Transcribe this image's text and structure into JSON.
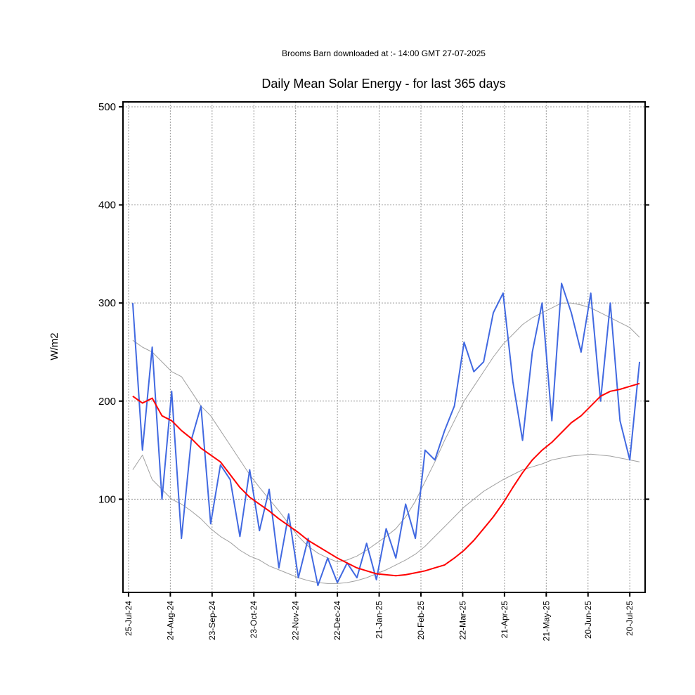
{
  "chart_data": {
    "type": "line",
    "subtitle": "Brooms Barn downloaded at :- 14:00 GMT 27-07-2025",
    "title": "Daily Mean Solar Energy - for last 365 days",
    "xlabel": "",
    "ylabel": "W/m2",
    "ylim": [
      5,
      505
    ],
    "yticks": [
      100,
      200,
      300,
      400,
      500
    ],
    "xlim": [
      "2024-07-21",
      "2025-07-31"
    ],
    "xticks": [
      "25-Jul-24",
      "24-Aug-24",
      "23-Sep-24",
      "23-Oct-24",
      "22-Nov-24",
      "22-Dec-24",
      "21-Jan-25",
      "20-Feb-25",
      "22-Mar-25",
      "21-Apr-25",
      "21-May-25",
      "20-Jun-25",
      "20-Jul-25"
    ],
    "grid": true,
    "series": [
      {
        "color": "#ff0000",
        "x": [
          "2024-07-28",
          "2024-08-04",
          "2024-08-11",
          "2024-08-18",
          "2024-08-25",
          "2024-09-01",
          "2024-09-08",
          "2024-09-15",
          "2024-09-22",
          "2024-09-29",
          "2024-10-06",
          "2024-10-13",
          "2024-10-20",
          "2024-10-27",
          "2024-11-03",
          "2024-11-10",
          "2024-11-17",
          "2024-11-24",
          "2024-12-01",
          "2024-12-08",
          "2024-12-15",
          "2024-12-22",
          "2024-12-29",
          "2025-01-05",
          "2025-01-12",
          "2025-01-19",
          "2025-01-26",
          "2025-02-02",
          "2025-02-09",
          "2025-02-16",
          "2025-02-23",
          "2025-03-02",
          "2025-03-09",
          "2025-03-16",
          "2025-03-23",
          "2025-03-30",
          "2025-04-06",
          "2025-04-13",
          "2025-04-20",
          "2025-04-27",
          "2025-05-04",
          "2025-05-11",
          "2025-05-18",
          "2025-05-25",
          "2025-06-01",
          "2025-06-08",
          "2025-06-15",
          "2025-06-22",
          "2025-06-29",
          "2025-07-06",
          "2025-07-13",
          "2025-07-20",
          "2025-07-27"
        ],
        "values": [
          205,
          198,
          203,
          185,
          180,
          170,
          162,
          152,
          145,
          138,
          125,
          112,
          102,
          95,
          88,
          80,
          73,
          66,
          58,
          52,
          46,
          40,
          35,
          30,
          27,
          24,
          23,
          22,
          23,
          25,
          27,
          30,
          33,
          40,
          48,
          58,
          70,
          82,
          96,
          112,
          127,
          140,
          150,
          158,
          168,
          178,
          185,
          195,
          205,
          210,
          212,
          215,
          218
        ]
      },
      {
        "color": "#4169e1",
        "x": [
          "2024-07-28",
          "2024-08-04",
          "2024-08-11",
          "2024-08-18",
          "2024-08-25",
          "2024-09-01",
          "2024-09-08",
          "2024-09-15",
          "2024-09-22",
          "2024-09-29",
          "2024-10-06",
          "2024-10-13",
          "2024-10-20",
          "2024-10-27",
          "2024-11-03",
          "2024-11-10",
          "2024-11-17",
          "2024-11-24",
          "2024-12-01",
          "2024-12-08",
          "2024-12-15",
          "2024-12-22",
          "2024-12-29",
          "2025-01-05",
          "2025-01-12",
          "2025-01-19",
          "2025-01-26",
          "2025-02-02",
          "2025-02-09",
          "2025-02-16",
          "2025-02-23",
          "2025-03-02",
          "2025-03-09",
          "2025-03-16",
          "2025-03-23",
          "2025-03-30",
          "2025-04-06",
          "2025-04-13",
          "2025-04-20",
          "2025-04-27",
          "2025-05-04",
          "2025-05-11",
          "2025-05-18",
          "2025-05-25",
          "2025-06-01",
          "2025-06-08",
          "2025-06-15",
          "2025-06-22",
          "2025-06-29",
          "2025-07-06",
          "2025-07-13",
          "2025-07-20",
          "2025-07-27"
        ],
        "values": [
          300,
          150,
          255,
          100,
          210,
          60,
          160,
          195,
          75,
          135,
          120,
          62,
          130,
          68,
          110,
          30,
          85,
          20,
          60,
          12,
          40,
          15,
          35,
          20,
          55,
          18,
          70,
          40,
          95,
          60,
          150,
          140,
          170,
          195,
          260,
          230,
          240,
          290,
          310,
          220,
          160,
          250,
          300,
          180,
          320,
          290,
          250,
          310,
          200,
          300,
          180,
          140,
          240
        ]
      },
      {
        "color": "#a0a0a0",
        "x": [
          "2024-07-28",
          "2024-08-04",
          "2024-08-11",
          "2024-08-18",
          "2024-08-25",
          "2024-09-01",
          "2024-09-08",
          "2024-09-15",
          "2024-09-22",
          "2024-09-29",
          "2024-10-06",
          "2024-10-13",
          "2024-10-20",
          "2024-10-27",
          "2024-11-03",
          "2024-11-10",
          "2024-11-17",
          "2024-11-24",
          "2024-12-01",
          "2024-12-08",
          "2024-12-15",
          "2024-12-22",
          "2024-12-29",
          "2025-01-05",
          "2025-01-12",
          "2025-01-19",
          "2025-01-26",
          "2025-02-02",
          "2025-02-09",
          "2025-02-16",
          "2025-02-23",
          "2025-03-02",
          "2025-03-09",
          "2025-03-16",
          "2025-03-23",
          "2025-03-30",
          "2025-04-06",
          "2025-04-13",
          "2025-04-20",
          "2025-04-27",
          "2025-05-04",
          "2025-05-11",
          "2025-05-18",
          "2025-05-25",
          "2025-06-01",
          "2025-06-08",
          "2025-06-15",
          "2025-06-22",
          "2025-06-29",
          "2025-07-06",
          "2025-07-13",
          "2025-07-20",
          "2025-07-27"
        ],
        "values": [
          262,
          255,
          250,
          240,
          230,
          225,
          210,
          195,
          185,
          170,
          155,
          140,
          125,
          112,
          100,
          88,
          75,
          62,
          52,
          45,
          40,
          36,
          38,
          42,
          48,
          55,
          62,
          70,
          82,
          98,
          118,
          138,
          160,
          180,
          200,
          215,
          230,
          245,
          258,
          268,
          278,
          285,
          290,
          295,
          300,
          300,
          298,
          295,
          290,
          285,
          280,
          275,
          265
        ]
      },
      {
        "color": "#a0a0a0",
        "x": [
          "2024-07-28",
          "2024-08-04",
          "2024-08-11",
          "2024-08-18",
          "2024-08-25",
          "2024-09-01",
          "2024-09-08",
          "2024-09-15",
          "2024-09-22",
          "2024-09-29",
          "2024-10-06",
          "2024-10-13",
          "2024-10-20",
          "2024-10-27",
          "2024-11-03",
          "2024-11-10",
          "2024-11-17",
          "2024-11-24",
          "2024-12-01",
          "2024-12-08",
          "2024-12-15",
          "2024-12-22",
          "2024-12-29",
          "2025-01-05",
          "2025-01-12",
          "2025-01-19",
          "2025-01-26",
          "2025-02-02",
          "2025-02-09",
          "2025-02-16",
          "2025-02-23",
          "2025-03-02",
          "2025-03-09",
          "2025-03-16",
          "2025-03-23",
          "2025-03-30",
          "2025-04-06",
          "2025-04-13",
          "2025-04-20",
          "2025-04-27",
          "2025-05-04",
          "2025-05-11",
          "2025-05-18",
          "2025-05-25",
          "2025-06-01",
          "2025-06-08",
          "2025-06-15",
          "2025-06-22",
          "2025-06-29",
          "2025-07-06",
          "2025-07-13",
          "2025-07-20",
          "2025-07-27"
        ],
        "values": [
          130,
          145,
          120,
          110,
          100,
          95,
          88,
          80,
          70,
          62,
          56,
          48,
          42,
          38,
          32,
          28,
          24,
          20,
          17,
          15,
          14,
          14,
          15,
          17,
          20,
          24,
          28,
          33,
          38,
          44,
          52,
          62,
          72,
          82,
          92,
          100,
          108,
          114,
          120,
          125,
          130,
          133,
          136,
          140,
          142,
          144,
          145,
          146,
          145,
          144,
          142,
          140,
          138
        ]
      }
    ]
  }
}
